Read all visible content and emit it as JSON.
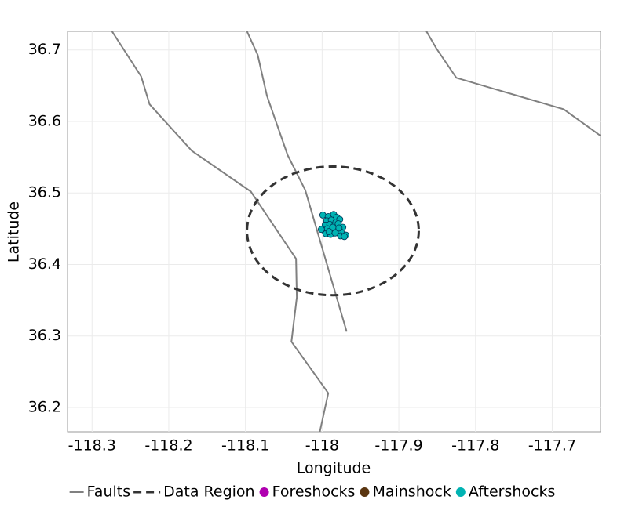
{
  "chart_data": {
    "type": "map",
    "x_label": "Longitude",
    "y_label": "Latitude",
    "xlim": [
      -118.332,
      -117.637
    ],
    "ylim": [
      36.166,
      36.726
    ],
    "xticks": [
      -118.3,
      -118.2,
      -118.1,
      -118,
      -117.9,
      -117.8,
      -117.7
    ],
    "yticks": [
      36.2,
      36.3,
      36.4,
      36.5,
      36.6,
      36.7
    ],
    "grid": true,
    "legend": "bottom",
    "series": [
      {
        "name": "Faults",
        "color": "#808080",
        "style": "line",
        "lines": [
          {
            "x": [
              -118.274,
              -118.236,
              -118.225,
              -118.17,
              -118.093,
              -118.034,
              -118.033,
              -118.04,
              -117.992,
              -118.003
            ],
            "y": [
              36.726,
              36.663,
              36.624,
              36.559,
              36.502,
              36.408,
              36.354,
              36.292,
              36.22,
              36.166
            ]
          },
          {
            "x": [
              -118.098,
              -118.084,
              -118.072,
              -118.045,
              -118.022,
              -117.968
            ],
            "y": [
              36.726,
              36.693,
              36.636,
              36.553,
              36.504,
              36.306
            ]
          },
          {
            "x": [
              -117.864,
              -117.851,
              -117.825,
              -117.685,
              -117.637
            ],
            "y": [
              36.726,
              36.702,
              36.661,
              36.617,
              36.58
            ]
          }
        ]
      },
      {
        "name": "Data Region",
        "color": "#333333",
        "style": "dash",
        "center": [
          -117.986,
          36.447
        ],
        "radius": [
          0.112,
          0.09
        ]
      },
      {
        "name": "Foreshocks",
        "color": "#b000b0",
        "style": "point",
        "x": [],
        "y": []
      },
      {
        "name": "Mainshock",
        "color": "#5a3510",
        "style": "point",
        "x": [],
        "y": []
      },
      {
        "name": "Aftershocks",
        "color": "#00b3b3",
        "style": "point",
        "x": [
          -117.999,
          -117.992,
          -117.985,
          -117.981,
          -117.994,
          -117.988,
          -117.982,
          -117.977,
          -117.996,
          -117.99,
          -117.984,
          -117.979,
          -117.973,
          -117.998,
          -117.993,
          -117.987,
          -117.98,
          -117.975,
          -117.969,
          -117.995,
          -117.989,
          -117.983,
          -117.976,
          -117.971,
          -118.001,
          -117.986,
          -117.978,
          -117.991
        ],
        "y": [
          36.469,
          36.467,
          36.47,
          36.466,
          36.461,
          36.462,
          36.459,
          36.463,
          36.455,
          36.456,
          36.454,
          36.457,
          36.452,
          36.448,
          36.45,
          36.447,
          36.449,
          36.445,
          36.441,
          36.443,
          36.442,
          36.444,
          36.44,
          36.439,
          36.449,
          36.452,
          36.451,
          36.446
        ]
      }
    ]
  }
}
